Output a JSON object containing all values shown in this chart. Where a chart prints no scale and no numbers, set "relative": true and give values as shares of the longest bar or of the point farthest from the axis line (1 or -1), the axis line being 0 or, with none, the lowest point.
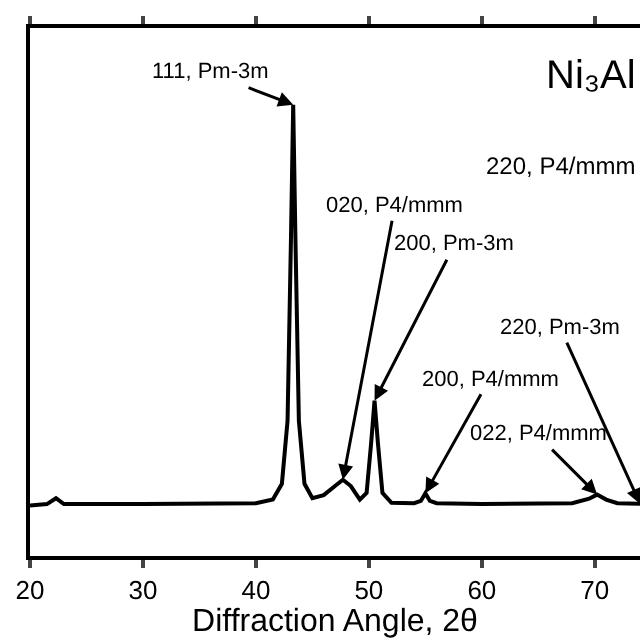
{
  "chart_data": {
    "type": "line",
    "xlabel": "Diffraction Angle, 2θ",
    "relative": true,
    "xlim": [
      20,
      74
    ],
    "xticks": [
      20,
      30,
      40,
      50,
      60,
      70
    ],
    "grid": false,
    "marker": "none",
    "line_style": "solid",
    "series": [
      {
        "color": "#000000",
        "x": [
          20,
          21.5,
          22.3,
          23,
          30,
          40,
          41.5,
          42.3,
          42.8,
          43.1,
          43.3,
          43.5,
          43.8,
          44.3,
          45,
          46,
          47,
          47.7,
          48.4,
          49.2,
          49.8,
          50.2,
          50.5,
          50.8,
          51.2,
          52,
          54,
          54.6,
          55,
          55.4,
          56,
          60,
          68,
          69.5,
          70.2,
          71,
          72,
          74
        ],
        "values": [
          0.112,
          0.115,
          0.128,
          0.115,
          0.115,
          0.117,
          0.125,
          0.16,
          0.3,
          0.7,
          1,
          0.7,
          0.3,
          0.16,
          0.128,
          0.135,
          0.155,
          0.169,
          0.155,
          0.125,
          0.14,
          0.25,
          0.344,
          0.25,
          0.14,
          0.118,
          0.117,
          0.122,
          0.139,
          0.122,
          0.117,
          0.115,
          0.117,
          0.127,
          0.136,
          0.125,
          0.117,
          0.116
        ]
      }
    ],
    "annotations": [
      {
        "text": "111, Pm-3m",
        "x": 43.3,
        "y": 1
      },
      {
        "text": "020, P4/mmm",
        "x": 47.7,
        "y": 0.169
      },
      {
        "text": "200, Pm-3m",
        "x": 50.5,
        "y": 0.344
      },
      {
        "text": "200, P4/mmm",
        "x": 55,
        "y": 0.139
      },
      {
        "text": "022, P4/mmm",
        "x": 70.2,
        "y": 0.136
      },
      {
        "text": "220, Pm-3m",
        "x": 74,
        "y": 0.116
      },
      "220, P4/mmm",
      "Ni₃Al"
    ]
  }
}
